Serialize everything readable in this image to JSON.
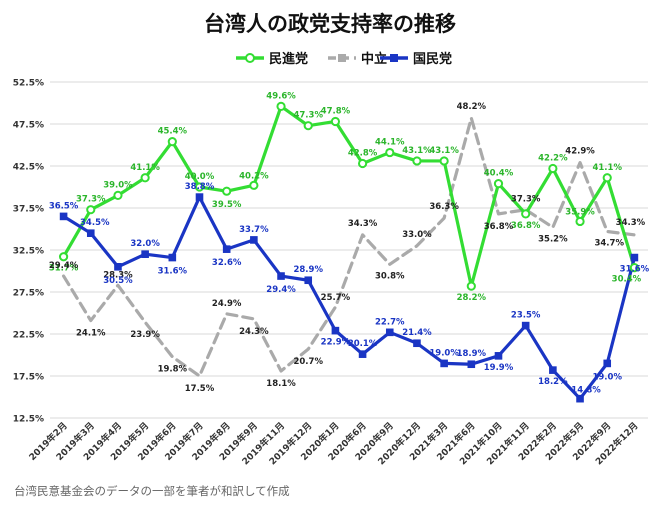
{
  "chart_data": {
    "type": "line",
    "title": "台湾人の政党支持率の推移",
    "xlabel": "",
    "ylabel": "",
    "ylim": [
      12.5,
      52.5
    ],
    "yticks": [
      "12.5%",
      "17.5%",
      "22.5%",
      "27.5%",
      "32.5%",
      "37.5%",
      "42.5%",
      "47.5%",
      "52.5%"
    ],
    "ytick_values": [
      12.5,
      17.5,
      22.5,
      27.5,
      32.5,
      37.5,
      42.5,
      47.5,
      52.5
    ],
    "grid": true,
    "legend_position": "top-center",
    "categories": [
      "2019年2月",
      "2019年3月",
      "2019年4月",
      "2019年5月",
      "2019年6月",
      "2019年7月",
      "2019年8月",
      "2019年9月",
      "2019年11月",
      "2019年12月",
      "2020年1月",
      "2020年6月",
      "2020年9月",
      "2020年12月",
      "2021年3月",
      "2021年6月",
      "2021年10月",
      "2021年11月",
      "2022年2月",
      "2022年5月",
      "2022年9月",
      "2022年12月"
    ],
    "series": [
      {
        "name": "民進党",
        "color": "#33dd33",
        "style": "solid",
        "marker": "circle",
        "values": [
          31.7,
          37.3,
          39.0,
          41.1,
          45.4,
          40.0,
          39.5,
          40.2,
          49.6,
          47.3,
          47.8,
          42.8,
          44.1,
          43.1,
          43.1,
          28.2,
          40.4,
          36.8,
          42.2,
          35.9,
          41.1,
          30.4
        ],
        "labels": [
          "31.7%",
          "37.3%",
          "39.0%",
          "41.1%",
          "45.4%",
          "40.0%",
          "39.5%",
          "40.2%",
          "49.6%",
          "47.3%",
          "47.8%",
          "42.8%",
          "44.1%",
          "43.1%",
          "43.1%",
          "28.2%",
          "40.4%",
          "36.8%",
          "42.2%",
          "35.9%",
          "41.1%",
          "30.4%"
        ]
      },
      {
        "name": "中立",
        "color": "#aaaaaa",
        "style": "dashed",
        "marker": "square",
        "values": [
          29.4,
          24.1,
          28.3,
          23.9,
          19.8,
          17.5,
          24.9,
          24.3,
          18.1,
          20.7,
          25.7,
          34.3,
          30.8,
          33.0,
          36.3,
          48.2,
          36.8,
          37.3,
          35.2,
          42.9,
          34.7,
          34.3
        ],
        "labels": [
          "29.4%",
          "24.1%",
          "28.3%",
          "23.9%",
          "19.8%",
          "17.5%",
          "24.9%",
          "24.3%",
          "18.1%",
          "20.7%",
          "25.7%",
          "34.3%",
          "30.8%",
          "33.0%",
          "36.3%",
          "48.2%",
          "36.8%",
          "37.3%",
          "35.2%",
          "42.9%",
          "34.7%",
          "34.3%"
        ]
      },
      {
        "name": "国民党",
        "color": "#1a35c4",
        "style": "solid",
        "marker": "square",
        "values": [
          36.5,
          34.5,
          30.5,
          32.0,
          31.6,
          38.8,
          32.6,
          33.7,
          29.4,
          28.9,
          22.9,
          20.1,
          22.7,
          21.4,
          19.0,
          18.9,
          19.9,
          23.5,
          18.2,
          14.8,
          19.0,
          31.6
        ],
        "labels": [
          "36.5%",
          "34.5%",
          "30.5%",
          "32.0%",
          "31.6%",
          "38.8%",
          "32.6%",
          "33.7%",
          "29.4%",
          "28.9%",
          "22.9%",
          "20.1%",
          "22.7%",
          "21.4%",
          "19.0%",
          "18.9%",
          "19.9%",
          "23.5%",
          "18.2%",
          "14.8%",
          "19.0%",
          "31.6%"
        ]
      }
    ],
    "caption": "台湾民意基金会のデータの一部を筆者が和訳して作成"
  }
}
